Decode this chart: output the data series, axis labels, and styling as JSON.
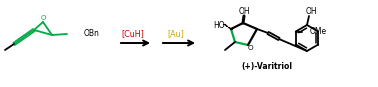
{
  "background_color": "#ffffff",
  "arrow_color": "#000000",
  "CuH_color": "#cc0000",
  "Au_color": "#ccaa00",
  "green_color": "#00aa44",
  "black_color": "#000000",
  "title_text": "(+)-Varitriol",
  "CuH_text": "[CuH]",
  "Au_text": "[Au]",
  "OBn_text": "OBn",
  "HO_left_text": "HO",
  "HO_right_text": "OH",
  "OMe_text": "OMe",
  "OH_text": "OH",
  "O_epoxide_text": "O",
  "O_ring_text": "O"
}
